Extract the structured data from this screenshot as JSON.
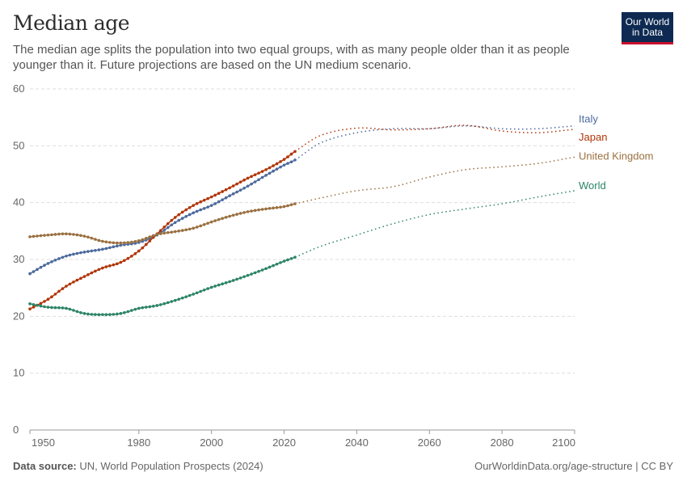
{
  "header": {
    "title": "Median age",
    "subtitle": "The median age splits the population into two equal groups, with as many people older than it as people younger than it. Future projections are based on the UN medium scenario.",
    "logo_line1": "Our World",
    "logo_line2": "in Data"
  },
  "footer": {
    "source_label": "Data source:",
    "source": "UN, World Population Prospects (2024)",
    "url": "OurWorldinData.org/age-structure | CC BY"
  },
  "chart_data": {
    "type": "line",
    "title": "Median age",
    "xlim": [
      1950,
      2100
    ],
    "ylim": [
      0,
      60
    ],
    "x_ticks": [
      1950,
      1980,
      2000,
      2020,
      2040,
      2060,
      2080,
      2100
    ],
    "y_ticks": [
      0,
      10,
      20,
      30,
      40,
      50,
      60
    ],
    "grid": "horizontal dashed",
    "legend": "inline-right",
    "projection_start": 2023,
    "x": [
      1950,
      1955,
      1960,
      1965,
      1970,
      1975,
      1980,
      1985,
      1990,
      1995,
      2000,
      2005,
      2010,
      2015,
      2020,
      2023,
      2030,
      2040,
      2050,
      2060,
      2070,
      2080,
      2090,
      2100
    ],
    "series": [
      {
        "name": "Italy",
        "color": "#4c6a9c",
        "values": [
          27.5,
          29.3,
          30.6,
          31.3,
          31.8,
          32.5,
          33.0,
          34.3,
          36.5,
          38.2,
          39.5,
          41.2,
          42.9,
          44.8,
          46.6,
          47.5,
          50.5,
          52.3,
          53.0,
          53.0,
          53.5,
          53.0,
          53.0,
          53.5
        ]
      },
      {
        "name": "Japan",
        "color": "#b13507",
        "values": [
          21.3,
          23.0,
          25.3,
          27.0,
          28.5,
          29.5,
          31.5,
          34.5,
          37.4,
          39.5,
          41.0,
          42.6,
          44.3,
          45.8,
          47.6,
          49.0,
          51.8,
          53.1,
          52.8,
          53.0,
          53.6,
          52.6,
          52.3,
          52.9
        ]
      },
      {
        "name": "United Kingdom",
        "color": "#9a7040",
        "values": [
          34.0,
          34.3,
          34.5,
          34.1,
          33.2,
          32.9,
          33.3,
          34.4,
          34.9,
          35.5,
          36.6,
          37.6,
          38.4,
          38.9,
          39.3,
          39.8,
          40.8,
          42.1,
          42.8,
          44.5,
          45.8,
          46.3,
          46.9,
          48.0
        ]
      },
      {
        "name": "World",
        "color": "#2c8465",
        "values": [
          22.2,
          21.6,
          21.4,
          20.5,
          20.3,
          20.5,
          21.4,
          21.9,
          22.8,
          23.9,
          25.1,
          26.1,
          27.2,
          28.4,
          29.7,
          30.4,
          32.3,
          34.3,
          36.3,
          37.9,
          38.9,
          39.8,
          41.0,
          42.1
        ]
      }
    ]
  }
}
